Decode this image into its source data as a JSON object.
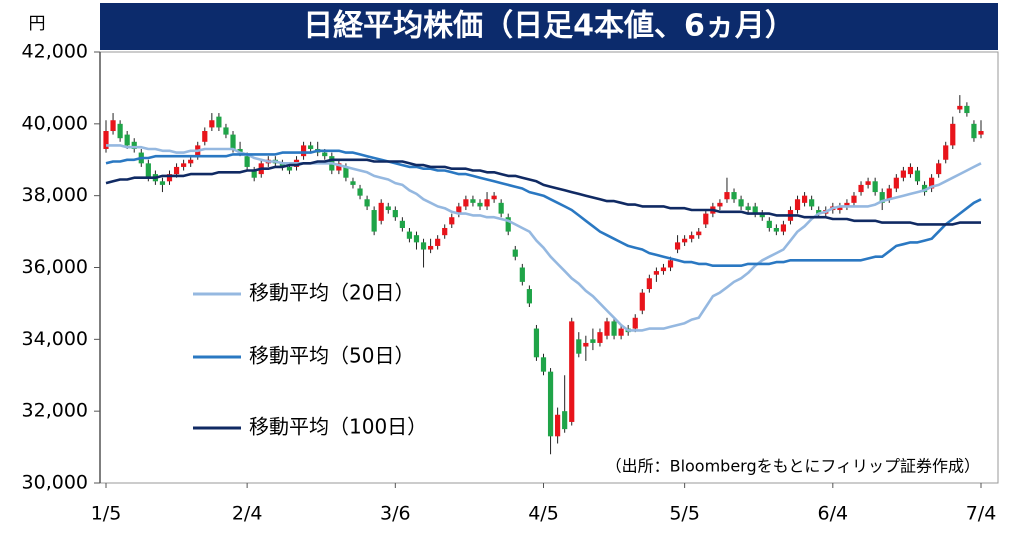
{
  "chart_data": {
    "type": "candlestick",
    "title": "日経平均株価（日足4本値、6ヵ月）",
    "y_unit": "円",
    "source": "（出所：Bloombergをもとにフィリップ証券作成）",
    "categories": [
      "1/5",
      null,
      null,
      null,
      null,
      null,
      null,
      null,
      null,
      null,
      null,
      null,
      null,
      null,
      null,
      null,
      null,
      null,
      null,
      null,
      "2/4",
      null,
      null,
      null,
      null,
      null,
      null,
      null,
      null,
      null,
      null,
      null,
      null,
      null,
      null,
      null,
      null,
      null,
      null,
      null,
      null,
      "3/6",
      null,
      null,
      null,
      null,
      null,
      null,
      null,
      null,
      null,
      null,
      null,
      null,
      null,
      null,
      null,
      null,
      null,
      null,
      null,
      null,
      "4/5",
      null,
      null,
      null,
      null,
      null,
      null,
      null,
      null,
      null,
      null,
      null,
      null,
      null,
      null,
      null,
      null,
      null,
      null,
      null,
      "5/5",
      null,
      null,
      null,
      null,
      null,
      null,
      null,
      null,
      null,
      null,
      null,
      null,
      null,
      null,
      null,
      null,
      null,
      null,
      null,
      null,
      "6/4",
      null,
      null,
      null,
      null,
      null,
      null,
      null,
      null,
      null,
      null,
      null,
      null,
      null,
      null,
      null,
      null,
      null,
      null,
      null,
      null,
      "7/4"
    ],
    "open": [
      39300,
      39800,
      40000,
      39700,
      39500,
      39200,
      38900,
      38600,
      38400,
      38400,
      38600,
      38800,
      38900,
      39100,
      39500,
      39900,
      40200,
      39900,
      39700,
      39300,
      39100,
      38700,
      38600,
      38900,
      39000,
      38900,
      38800,
      38800,
      39100,
      39400,
      39300,
      39200,
      39100,
      38700,
      38800,
      38400,
      38200,
      37900,
      37600,
      37300,
      37700,
      37600,
      37300,
      37000,
      36900,
      36700,
      36500,
      36600,
      36900,
      37200,
      37500,
      37700,
      37900,
      37800,
      37700,
      37900,
      37800,
      37400,
      36500,
      36000,
      35400,
      34300,
      33500,
      33100,
      31300,
      32000,
      31700,
      34000,
      33800,
      34000,
      33900,
      34100,
      34500,
      34100,
      34300,
      34300,
      34800,
      35400,
      35800,
      35900,
      36000,
      36500,
      36700,
      36800,
      36900,
      37200,
      37500,
      37700,
      37900,
      38100,
      37900,
      37700,
      37700,
      37500,
      37300,
      37100,
      37000,
      37300,
      37600,
      37800,
      37900,
      37600,
      37500,
      37600,
      37600,
      37700,
      37800,
      38100,
      38300,
      38400,
      38100,
      37900,
      38200,
      38500,
      38600,
      38700,
      38300,
      38200,
      38600,
      39000,
      39400,
      40400,
      40500,
      40000,
      39700
    ],
    "high": [
      40100,
      40300,
      40100,
      39800,
      39600,
      39300,
      39000,
      38700,
      38500,
      38700,
      38900,
      39000,
      39100,
      39500,
      39900,
      40300,
      40300,
      40000,
      39800,
      39500,
      39200,
      38800,
      39000,
      39100,
      39100,
      39000,
      38900,
      39100,
      39500,
      39500,
      39500,
      39300,
      39200,
      39000,
      38900,
      38500,
      38300,
      38000,
      37700,
      37900,
      37800,
      37700,
      37400,
      37100,
      37000,
      36800,
      36800,
      36900,
      37200,
      37500,
      37800,
      38000,
      38000,
      37900,
      38100,
      38100,
      37900,
      37500,
      36600,
      36100,
      35500,
      34400,
      33600,
      33200,
      32100,
      33000,
      34600,
      34200,
      34100,
      34300,
      34300,
      34600,
      34600,
      34400,
      34400,
      34700,
      35400,
      35800,
      36000,
      36100,
      36300,
      36900,
      36900,
      37000,
      37100,
      37600,
      37800,
      37900,
      38500,
      38200,
      38000,
      37800,
      37800,
      37600,
      37400,
      37200,
      37300,
      37700,
      38000,
      38100,
      38000,
      37700,
      37700,
      37800,
      37800,
      37900,
      38100,
      38400,
      38500,
      38500,
      38200,
      38300,
      38600,
      38800,
      38900,
      38800,
      38400,
      38600,
      39000,
      39500,
      40200,
      40800,
      40600,
      40100,
      40100
    ],
    "low": [
      39200,
      39700,
      39500,
      39300,
      39200,
      38800,
      38400,
      38300,
      38100,
      38300,
      38500,
      38700,
      38800,
      39000,
      39400,
      39800,
      39800,
      39600,
      39200,
      39100,
      38700,
      38400,
      38500,
      38800,
      38800,
      38700,
      38600,
      38700,
      39000,
      39200,
      39100,
      39000,
      38600,
      38600,
      38400,
      38200,
      37900,
      37600,
      36900,
      37200,
      37500,
      37300,
      37000,
      36700,
      36500,
      36000,
      36400,
      36500,
      36800,
      37100,
      37400,
      37600,
      37700,
      37600,
      37600,
      37800,
      37400,
      36900,
      36200,
      35500,
      34900,
      33400,
      33000,
      30800,
      31100,
      31400,
      31600,
      33500,
      33400,
      33700,
      33800,
      34000,
      34000,
      34000,
      34100,
      34200,
      34700,
      35300,
      35600,
      35800,
      35900,
      36400,
      36600,
      36700,
      36800,
      37100,
      37400,
      37600,
      37800,
      37800,
      37600,
      37500,
      37400,
      37300,
      37000,
      36900,
      36900,
      37200,
      37500,
      37700,
      37600,
      37400,
      37400,
      37500,
      37500,
      37600,
      37700,
      38000,
      38200,
      38000,
      37600,
      37800,
      38100,
      38400,
      38500,
      38300,
      38000,
      38100,
      38500,
      38900,
      39300,
      40300,
      40200,
      39500,
      39600
    ],
    "close": [
      39800,
      40100,
      39600,
      39400,
      39300,
      38900,
      38500,
      38400,
      38300,
      38600,
      38800,
      38900,
      39000,
      39400,
      39800,
      40100,
      39900,
      39700,
      39300,
      39200,
      38800,
      38500,
      38900,
      39000,
      38900,
      38800,
      38700,
      39000,
      39400,
      39300,
      39200,
      39100,
      38700,
      38900,
      38500,
      38300,
      38000,
      37700,
      37000,
      37800,
      37600,
      37400,
      37100,
      36800,
      36700,
      36500,
      36600,
      36800,
      37100,
      37400,
      37700,
      37900,
      37800,
      37700,
      37900,
      38000,
      37500,
      37000,
      36300,
      35600,
      35000,
      33500,
      33100,
      31300,
      31900,
      31500,
      34500,
      33600,
      33900,
      33900,
      34200,
      34500,
      34100,
      34300,
      34200,
      34600,
      35300,
      35700,
      35900,
      36000,
      36200,
      36700,
      36800,
      36900,
      37000,
      37500,
      37700,
      37800,
      38100,
      37900,
      37700,
      37600,
      37500,
      37400,
      37100,
      37000,
      37200,
      37600,
      37900,
      38000,
      37700,
      37500,
      37600,
      37700,
      37700,
      37800,
      38000,
      38300,
      38400,
      38100,
      37800,
      38200,
      38500,
      38700,
      38800,
      38400,
      38100,
      38500,
      38900,
      39400,
      40000,
      40500,
      40300,
      39600,
      39800
    ],
    "up_color": "#e8141b",
    "down_color": "#1fa448",
    "series": [
      {
        "name": "移動平均（20日）",
        "color": "#95b8e0",
        "values": [
          39400,
          39400,
          39400,
          39350,
          39350,
          39350,
          39300,
          39300,
          39250,
          39250,
          39200,
          39200,
          39250,
          39250,
          39300,
          39300,
          39300,
          39300,
          39300,
          39200,
          39150,
          39050,
          39000,
          38950,
          38950,
          38900,
          38900,
          38900,
          38900,
          38900,
          38900,
          38900,
          38900,
          38850,
          38800,
          38750,
          38700,
          38650,
          38550,
          38500,
          38450,
          38350,
          38300,
          38150,
          38050,
          37900,
          37800,
          37700,
          37650,
          37550,
          37500,
          37500,
          37450,
          37450,
          37400,
          37400,
          37350,
          37300,
          37200,
          37100,
          37000,
          36750,
          36550,
          36300,
          36100,
          35900,
          35700,
          35550,
          35350,
          35200,
          35000,
          34800,
          34600,
          34400,
          34250,
          34250,
          34250,
          34300,
          34300,
          34300,
          34350,
          34400,
          34450,
          34550,
          34600,
          34900,
          35200,
          35300,
          35450,
          35600,
          35700,
          35850,
          36050,
          36200,
          36300,
          36400,
          36500,
          36750,
          37000,
          37150,
          37350,
          37500,
          37550,
          37650,
          37700,
          37700,
          37700,
          37700,
          37700,
          37750,
          37850,
          37900,
          37950,
          38000,
          38050,
          38100,
          38150,
          38250,
          38300,
          38400,
          38500,
          38600,
          38700,
          38800,
          38900
        ]
      },
      {
        "name": "移動平均（50日）",
        "color": "#2a78c2",
        "values": [
          38900,
          38950,
          38950,
          39000,
          39000,
          39050,
          39050,
          39100,
          39100,
          39100,
          39100,
          39100,
          39100,
          39100,
          39100,
          39100,
          39100,
          39100,
          39150,
          39150,
          39150,
          39150,
          39150,
          39150,
          39150,
          39200,
          39200,
          39200,
          39200,
          39200,
          39250,
          39250,
          39250,
          39250,
          39200,
          39200,
          39150,
          39100,
          39050,
          39000,
          38950,
          38900,
          38850,
          38800,
          38800,
          38750,
          38750,
          38700,
          38700,
          38650,
          38600,
          38600,
          38550,
          38500,
          38450,
          38400,
          38350,
          38300,
          38250,
          38200,
          38100,
          38050,
          38000,
          37900,
          37800,
          37700,
          37600,
          37450,
          37300,
          37150,
          37000,
          36900,
          36800,
          36700,
          36600,
          36550,
          36500,
          36400,
          36350,
          36300,
          36250,
          36200,
          36150,
          36150,
          36100,
          36100,
          36050,
          36050,
          36050,
          36050,
          36050,
          36100,
          36100,
          36100,
          36100,
          36150,
          36150,
          36200,
          36200,
          36200,
          36200,
          36200,
          36200,
          36200,
          36200,
          36200,
          36200,
          36200,
          36250,
          36300,
          36300,
          36450,
          36600,
          36650,
          36700,
          36700,
          36750,
          36800,
          37000,
          37200,
          37350,
          37500,
          37650,
          37800,
          37900
        ]
      },
      {
        "name": "移動平均（100日）",
        "color": "#102a63",
        "values": [
          38350,
          38400,
          38450,
          38450,
          38500,
          38500,
          38500,
          38500,
          38550,
          38550,
          38550,
          38550,
          38600,
          38600,
          38600,
          38600,
          38650,
          38650,
          38650,
          38650,
          38700,
          38700,
          38750,
          38750,
          38800,
          38800,
          38850,
          38850,
          38900,
          38900,
          38950,
          38950,
          39000,
          39000,
          39000,
          39000,
          39000,
          39000,
          38950,
          38950,
          38950,
          38950,
          38950,
          38900,
          38850,
          38850,
          38800,
          38800,
          38800,
          38750,
          38750,
          38750,
          38700,
          38700,
          38650,
          38650,
          38600,
          38550,
          38550,
          38500,
          38450,
          38400,
          38300,
          38250,
          38200,
          38150,
          38100,
          38050,
          38000,
          37950,
          37900,
          37850,
          37850,
          37800,
          37750,
          37750,
          37700,
          37700,
          37700,
          37700,
          37650,
          37650,
          37650,
          37600,
          37600,
          37600,
          37600,
          37550,
          37550,
          37550,
          37550,
          37500,
          37500,
          37500,
          37500,
          37450,
          37450,
          37450,
          37450,
          37400,
          37400,
          37400,
          37400,
          37350,
          37350,
          37350,
          37300,
          37300,
          37300,
          37300,
          37250,
          37250,
          37250,
          37250,
          37250,
          37200,
          37200,
          37200,
          37200,
          37200,
          37200,
          37250,
          37250,
          37250,
          37250
        ]
      }
    ],
    "ylim": [
      30000,
      42000
    ],
    "yticks": [
      {
        "value": 30000,
        "label": "30,000"
      },
      {
        "value": 32000,
        "label": "32,000"
      },
      {
        "value": 34000,
        "label": "34,000"
      },
      {
        "value": 36000,
        "label": "36,000"
      },
      {
        "value": 38000,
        "label": "38,000"
      },
      {
        "value": 40000,
        "label": "40,000"
      },
      {
        "value": 42000,
        "label": "42,000"
      }
    ]
  }
}
